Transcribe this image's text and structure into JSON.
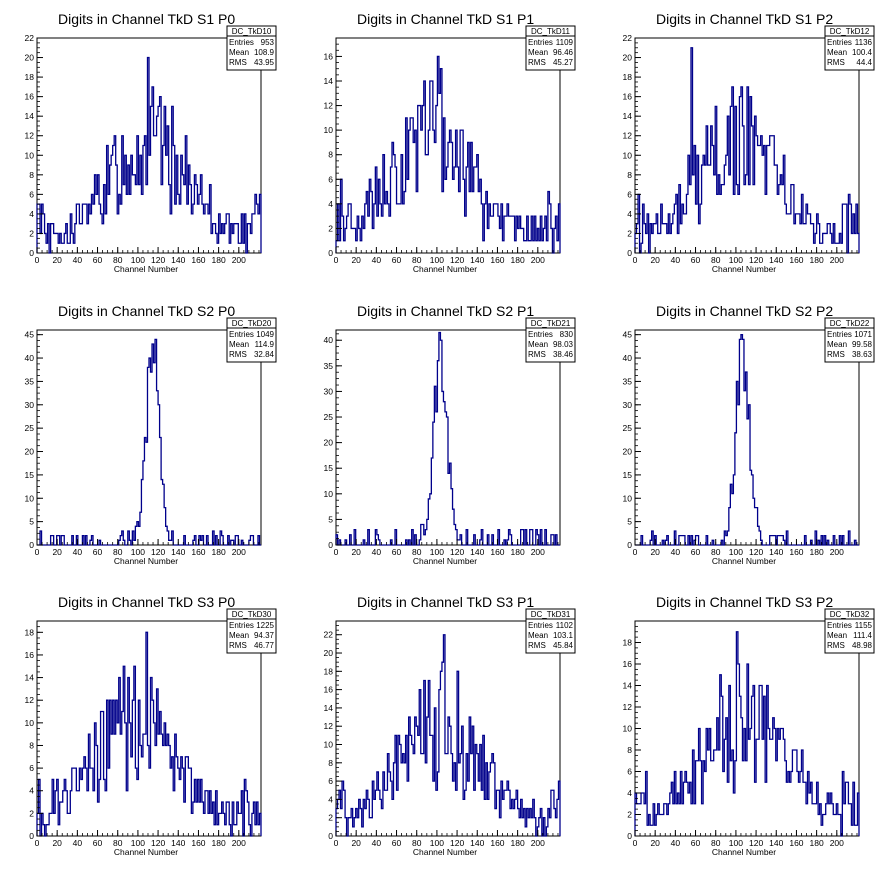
{
  "chart_data": [
    {
      "type": "bar",
      "title": "Digits in Channel TkD S1 P0",
      "xlabel": "Channel Number",
      "xlim": [
        0,
        222
      ],
      "ylim": [
        0,
        22
      ],
      "xticks": [
        0,
        20,
        40,
        60,
        80,
        100,
        120,
        140,
        160,
        180,
        200
      ],
      "yticks": [
        0,
        2,
        4,
        6,
        8,
        10,
        12,
        14,
        16,
        18,
        20,
        22
      ],
      "stats": {
        "name": "DC_TkD10",
        "entries": "953",
        "mean": "108.9",
        "rms": "43.95"
      },
      "peak": {
        "x": 110,
        "y": 20
      },
      "values": []
    },
    {
      "type": "bar",
      "title": "Digits in Channel TkD S1 P1",
      "xlabel": "Channel Number",
      "xlim": [
        0,
        222
      ],
      "ylim": [
        0,
        17.5
      ],
      "xticks": [
        0,
        20,
        40,
        60,
        80,
        100,
        120,
        140,
        160,
        180,
        200
      ],
      "yticks": [
        0,
        2,
        4,
        6,
        8,
        10,
        12,
        14,
        16
      ],
      "stats": {
        "name": "DC_TkD11",
        "entries": "1109",
        "mean": "96.46",
        "rms": "45.27"
      },
      "peak": {
        "x": 100,
        "y": 16
      },
      "values": []
    },
    {
      "type": "bar",
      "title": "Digits in Channel TkD S1 P2",
      "xlabel": "Channel Number",
      "xlim": [
        0,
        222
      ],
      "ylim": [
        0,
        22
      ],
      "xticks": [
        0,
        20,
        40,
        60,
        80,
        100,
        120,
        140,
        160,
        180,
        200
      ],
      "yticks": [
        0,
        2,
        4,
        6,
        8,
        10,
        12,
        14,
        16,
        18,
        20,
        22
      ],
      "stats": {
        "name": "DC_TkD12",
        "entries": "1136",
        "mean": "100.4",
        "rms": "44.4"
      },
      "peak": {
        "x": 55,
        "y": 21
      },
      "values": []
    },
    {
      "type": "bar",
      "title": "Digits in Channel TkD S2 P0",
      "xlabel": "Channel Number",
      "xlim": [
        0,
        222
      ],
      "ylim": [
        0,
        46
      ],
      "xticks": [
        0,
        20,
        40,
        60,
        80,
        100,
        120,
        140,
        160,
        180,
        200
      ],
      "yticks": [
        0,
        5,
        10,
        15,
        20,
        25,
        30,
        35,
        40,
        45
      ],
      "stats": {
        "name": "DC_TkD20",
        "entries": "1049",
        "mean": "114.9",
        "rms": "32.84"
      },
      "peak": {
        "x": 114,
        "y": 43
      },
      "values": []
    },
    {
      "type": "bar",
      "title": "Digits in Channel TkD S2 P1",
      "xlabel": "Channel Number",
      "xlim": [
        0,
        222
      ],
      "ylim": [
        0,
        42
      ],
      "xticks": [
        0,
        20,
        40,
        60,
        80,
        100,
        120,
        140,
        160,
        180,
        200
      ],
      "yticks": [
        0,
        5,
        10,
        15,
        20,
        25,
        30,
        35,
        40
      ],
      "stats": {
        "name": "DC_TkD21",
        "entries": "830",
        "mean": "98.03",
        "rms": "38.46"
      },
      "peak": {
        "x": 103,
        "y": 40
      },
      "values": []
    },
    {
      "type": "bar",
      "title": "Digits in Channel TkD S2 P2",
      "xlabel": "Channel Number",
      "xlim": [
        0,
        222
      ],
      "ylim": [
        0,
        46
      ],
      "xticks": [
        0,
        20,
        40,
        60,
        80,
        100,
        120,
        140,
        160,
        180,
        200
      ],
      "yticks": [
        0,
        5,
        10,
        15,
        20,
        25,
        30,
        35,
        40,
        45
      ],
      "stats": {
        "name": "DC_TkD22",
        "entries": "1071",
        "mean": "99.58",
        "rms": "38.63"
      },
      "peak": {
        "x": 106,
        "y": 44
      },
      "values": []
    },
    {
      "type": "bar",
      "title": "Digits in Channel TkD S3 P0",
      "xlabel": "Channel Number",
      "xlim": [
        0,
        222
      ],
      "ylim": [
        0,
        19
      ],
      "xticks": [
        0,
        20,
        40,
        60,
        80,
        100,
        120,
        140,
        160,
        180,
        200
      ],
      "yticks": [
        0,
        2,
        4,
        6,
        8,
        10,
        12,
        14,
        16,
        18
      ],
      "stats": {
        "name": "DC_TkD30",
        "entries": "1225",
        "mean": "94.37",
        "rms": "46.77"
      },
      "peak": {
        "x": 108,
        "y": 18
      },
      "values": []
    },
    {
      "type": "bar",
      "title": "Digits in Channel TkD S3 P1",
      "xlabel": "Channel Number",
      "xlim": [
        0,
        222
      ],
      "ylim": [
        0,
        23.5
      ],
      "xticks": [
        0,
        20,
        40,
        60,
        80,
        100,
        120,
        140,
        160,
        180,
        200
      ],
      "yticks": [
        0,
        2,
        4,
        6,
        8,
        10,
        12,
        14,
        16,
        18,
        20,
        22
      ],
      "stats": {
        "name": "DC_TkD31",
        "entries": "1102",
        "mean": "103.1",
        "rms": "45.84"
      },
      "peak": {
        "x": 106,
        "y": 22
      },
      "values": []
    },
    {
      "type": "bar",
      "title": "Digits in Channel TkD S3 P2",
      "xlabel": "Channel Number",
      "xlim": [
        0,
        222
      ],
      "ylim": [
        0,
        20
      ],
      "xticks": [
        0,
        20,
        40,
        60,
        80,
        100,
        120,
        140,
        160,
        180,
        200
      ],
      "yticks": [
        0,
        2,
        4,
        6,
        8,
        10,
        12,
        14,
        16,
        18
      ],
      "stats": {
        "name": "DC_TkD32",
        "entries": "1155",
        "mean": "111.4",
        "rms": "48.98"
      },
      "peak": {
        "x": 100,
        "y": 19
      },
      "values": []
    }
  ],
  "style": {
    "line_color": "#00008b",
    "axis_color": "#000000",
    "background": "#ffffff"
  },
  "stat_labels": {
    "entries": "Entries",
    "mean": "Mean",
    "rms": "RMS"
  }
}
